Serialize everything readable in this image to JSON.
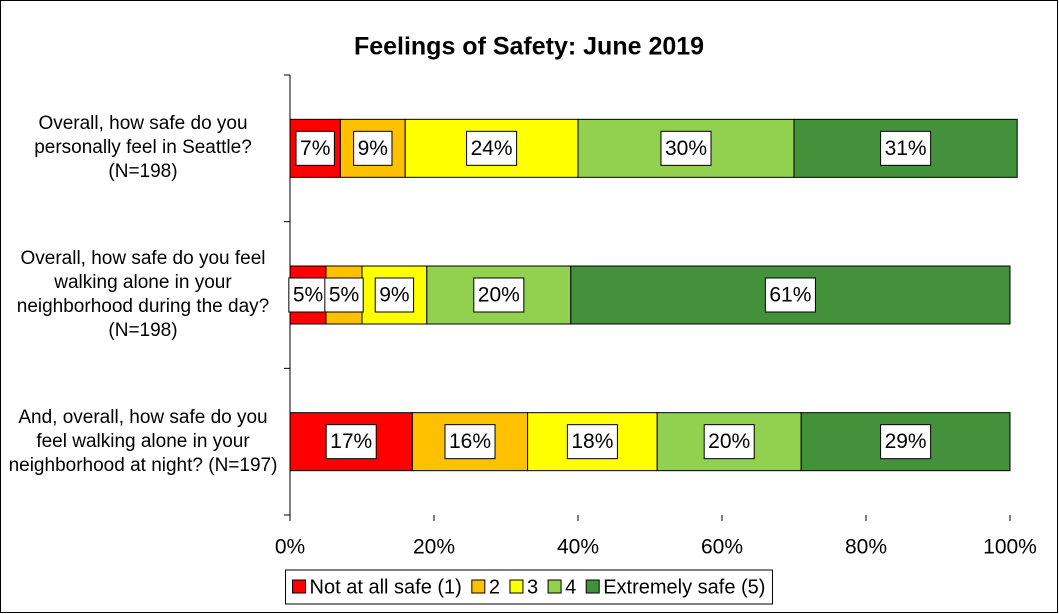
{
  "chart_data": {
    "type": "stacked_bar_horizontal",
    "title": "Feelings of Safety:  June 2019",
    "categories": [
      "Overall, how safe do you personally feel in Seattle? (N=198)",
      "Overall, how safe do you feel walking alone in your neighborhood during the day? (N=198)",
      "And, overall, how safe do you feel walking alone in your neighborhood at night? (N=197)"
    ],
    "series": [
      {
        "name": "Not at all safe (1)",
        "color": "#ff0000",
        "values": [
          7,
          5,
          17
        ],
        "value_labels": [
          "7%",
          "5%",
          "17%"
        ]
      },
      {
        "name": "2",
        "color": "#ffc000",
        "values": [
          9,
          5,
          16
        ],
        "value_labels": [
          "9%",
          "5%",
          "16%"
        ]
      },
      {
        "name": "3",
        "color": "#ffff00",
        "values": [
          24,
          9,
          18
        ],
        "value_labels": [
          "24%",
          "9%",
          "18%"
        ]
      },
      {
        "name": "4",
        "color": "#92d050",
        "values": [
          30,
          20,
          20
        ],
        "value_labels": [
          "30%",
          "20%",
          "20%"
        ]
      },
      {
        "name": "Extremely safe (5)",
        "color": "#43913a",
        "values": [
          31,
          61,
          29
        ],
        "value_labels": [
          "31%",
          "61%",
          "29%"
        ]
      }
    ],
    "xlim": [
      0,
      100
    ],
    "xticks": [
      {
        "value": 0,
        "label": "0%"
      },
      {
        "value": 20,
        "label": "20%"
      },
      {
        "value": 40,
        "label": "40%"
      },
      {
        "value": 60,
        "label": "60%"
      },
      {
        "value": 80,
        "label": "80%"
      },
      {
        "value": 100,
        "label": "100%"
      }
    ],
    "legend": "bottom"
  }
}
